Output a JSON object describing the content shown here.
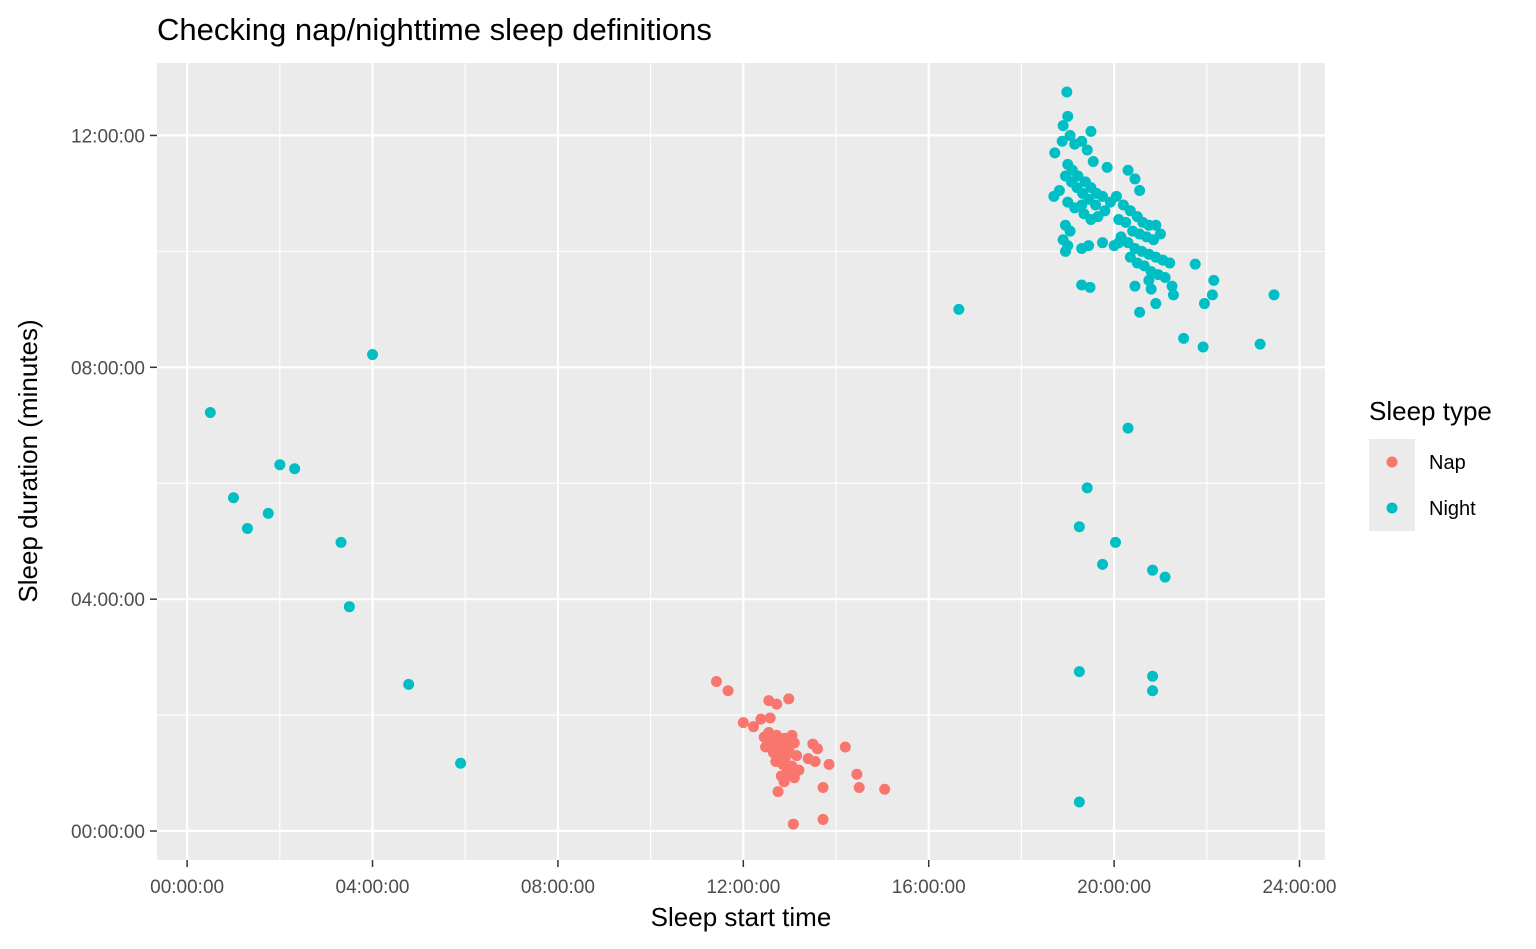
{
  "chart_data": {
    "type": "scatter",
    "title": "Checking nap/nighttime sleep definitions",
    "xlabel": "Sleep start time",
    "ylabel": "Sleep duration (minutes)",
    "xlim_hours": [
      -0.65,
      24.55
    ],
    "ylim_hours": [
      -0.5,
      13.25
    ],
    "x_ticks": [
      {
        "value": 0,
        "label": "00:00:00"
      },
      {
        "value": 4,
        "label": "04:00:00"
      },
      {
        "value": 8,
        "label": "08:00:00"
      },
      {
        "value": 12,
        "label": "12:00:00"
      },
      {
        "value": 16,
        "label": "16:00:00"
      },
      {
        "value": 20,
        "label": "20:00:00"
      },
      {
        "value": 24,
        "label": "24:00:00"
      }
    ],
    "y_ticks": [
      {
        "value": 0,
        "label": "00:00:00"
      },
      {
        "value": 4,
        "label": "04:00:00"
      },
      {
        "value": 8,
        "label": "08:00:00"
      },
      {
        "value": 12,
        "label": "12:00:00"
      }
    ],
    "grid": true,
    "legend": {
      "title": "Sleep type",
      "position": "right"
    },
    "series": [
      {
        "name": "Nap",
        "color": "#F8766D",
        "points": [
          [
            11.42,
            2.58
          ],
          [
            11.67,
            2.42
          ],
          [
            12.55,
            2.25
          ],
          [
            12.72,
            2.19
          ],
          [
            12.98,
            2.28
          ],
          [
            12.38,
            1.93
          ],
          [
            12.58,
            1.95
          ],
          [
            12.0,
            1.87
          ],
          [
            12.22,
            1.8
          ],
          [
            12.45,
            1.62
          ],
          [
            12.55,
            1.7
          ],
          [
            12.72,
            1.65
          ],
          [
            12.62,
            1.5
          ],
          [
            12.48,
            1.45
          ],
          [
            12.75,
            1.55
          ],
          [
            12.9,
            1.6
          ],
          [
            13.05,
            1.65
          ],
          [
            12.85,
            1.45
          ],
          [
            12.95,
            1.4
          ],
          [
            13.1,
            1.52
          ],
          [
            12.65,
            1.35
          ],
          [
            12.78,
            1.3
          ],
          [
            12.9,
            1.25
          ],
          [
            13.0,
            1.35
          ],
          [
            13.15,
            1.3
          ],
          [
            12.7,
            1.2
          ],
          [
            12.85,
            1.15
          ],
          [
            12.95,
            1.05
          ],
          [
            13.05,
            1.12
          ],
          [
            13.2,
            1.05
          ],
          [
            12.82,
            0.95
          ],
          [
            12.98,
            0.98
          ],
          [
            13.1,
            0.92
          ],
          [
            12.88,
            0.85
          ],
          [
            12.75,
            0.68
          ],
          [
            13.5,
            1.5
          ],
          [
            13.6,
            1.42
          ],
          [
            14.2,
            1.45
          ],
          [
            13.4,
            1.25
          ],
          [
            13.55,
            1.2
          ],
          [
            13.85,
            1.15
          ],
          [
            14.45,
            0.98
          ],
          [
            13.72,
            0.75
          ],
          [
            14.5,
            0.75
          ],
          [
            15.05,
            0.72
          ],
          [
            13.08,
            0.12
          ],
          [
            13.72,
            0.2
          ],
          [
            12.6,
            1.55
          ],
          [
            12.7,
            1.45
          ],
          [
            13.0,
            1.48
          ]
        ]
      },
      {
        "name": "Night",
        "color": "#00BFC4",
        "points": [
          [
            0.5,
            7.22
          ],
          [
            1.0,
            5.75
          ],
          [
            1.3,
            5.22
          ],
          [
            1.75,
            5.48
          ],
          [
            2.0,
            6.32
          ],
          [
            2.32,
            6.25
          ],
          [
            3.32,
            4.98
          ],
          [
            3.5,
            3.87
          ],
          [
            4.0,
            8.22
          ],
          [
            4.78,
            2.53
          ],
          [
            5.9,
            1.17
          ],
          [
            16.65,
            9.0
          ],
          [
            19.25,
            0.5
          ],
          [
            19.25,
            2.75
          ],
          [
            20.83,
            2.67
          ],
          [
            20.83,
            2.42
          ],
          [
            19.25,
            5.25
          ],
          [
            19.42,
            5.92
          ],
          [
            20.03,
            4.98
          ],
          [
            19.75,
            4.6
          ],
          [
            20.83,
            4.5
          ],
          [
            21.1,
            4.38
          ],
          [
            20.3,
            6.95
          ],
          [
            18.98,
            12.75
          ],
          [
            19.5,
            12.07
          ],
          [
            18.9,
            12.17
          ],
          [
            19.0,
            12.33
          ],
          [
            18.72,
            11.7
          ],
          [
            18.88,
            11.9
          ],
          [
            19.05,
            12.0
          ],
          [
            19.15,
            11.85
          ],
          [
            19.3,
            11.9
          ],
          [
            19.42,
            11.75
          ],
          [
            19.55,
            11.55
          ],
          [
            19.0,
            11.5
          ],
          [
            19.1,
            11.4
          ],
          [
            19.22,
            11.3
          ],
          [
            19.38,
            11.2
          ],
          [
            19.5,
            11.1
          ],
          [
            19.62,
            11.0
          ],
          [
            18.95,
            11.3
          ],
          [
            19.08,
            11.2
          ],
          [
            19.2,
            11.1
          ],
          [
            19.32,
            11.0
          ],
          [
            19.45,
            10.9
          ],
          [
            18.82,
            11.05
          ],
          [
            18.7,
            10.95
          ],
          [
            19.0,
            10.85
          ],
          [
            19.15,
            10.75
          ],
          [
            19.3,
            10.8
          ],
          [
            19.6,
            10.8
          ],
          [
            19.75,
            10.95
          ],
          [
            19.92,
            10.85
          ],
          [
            20.05,
            10.95
          ],
          [
            20.2,
            10.8
          ],
          [
            20.35,
            10.7
          ],
          [
            20.5,
            10.6
          ],
          [
            20.62,
            10.5
          ],
          [
            20.75,
            10.45
          ],
          [
            20.9,
            10.45
          ],
          [
            19.85,
            11.45
          ],
          [
            20.3,
            11.4
          ],
          [
            20.45,
            11.25
          ],
          [
            20.55,
            11.05
          ],
          [
            19.35,
            10.65
          ],
          [
            19.5,
            10.55
          ],
          [
            19.65,
            10.6
          ],
          [
            19.8,
            10.7
          ],
          [
            20.1,
            10.55
          ],
          [
            20.25,
            10.5
          ],
          [
            20.4,
            10.35
          ],
          [
            20.55,
            10.3
          ],
          [
            20.7,
            10.25
          ],
          [
            20.85,
            10.2
          ],
          [
            21.0,
            10.3
          ],
          [
            20.15,
            10.25
          ],
          [
            20.3,
            10.15
          ],
          [
            20.45,
            10.05
          ],
          [
            20.6,
            10.0
          ],
          [
            20.75,
            9.95
          ],
          [
            20.9,
            9.9
          ],
          [
            21.05,
            9.85
          ],
          [
            21.2,
            9.8
          ],
          [
            20.35,
            9.9
          ],
          [
            20.5,
            9.8
          ],
          [
            20.65,
            9.75
          ],
          [
            20.8,
            9.65
          ],
          [
            20.95,
            9.6
          ],
          [
            21.1,
            9.55
          ],
          [
            21.25,
            9.4
          ],
          [
            18.95,
            10.45
          ],
          [
            19.05,
            10.35
          ],
          [
            18.9,
            10.2
          ],
          [
            19.0,
            10.1
          ],
          [
            18.95,
            10.0
          ],
          [
            19.3,
            10.05
          ],
          [
            19.45,
            10.1
          ],
          [
            19.75,
            10.15
          ],
          [
            20.0,
            10.1
          ],
          [
            20.1,
            10.15
          ],
          [
            19.3,
            9.42
          ],
          [
            19.48,
            9.38
          ],
          [
            20.45,
            9.4
          ],
          [
            20.75,
            9.5
          ],
          [
            21.28,
            9.25
          ],
          [
            20.8,
            9.35
          ],
          [
            20.55,
            8.95
          ],
          [
            20.9,
            9.1
          ],
          [
            21.75,
            9.78
          ],
          [
            22.15,
            9.5
          ],
          [
            22.12,
            9.25
          ],
          [
            21.95,
            9.1
          ],
          [
            21.5,
            8.5
          ],
          [
            21.92,
            8.35
          ],
          [
            23.15,
            8.4
          ],
          [
            23.45,
            9.25
          ]
        ]
      }
    ]
  }
}
